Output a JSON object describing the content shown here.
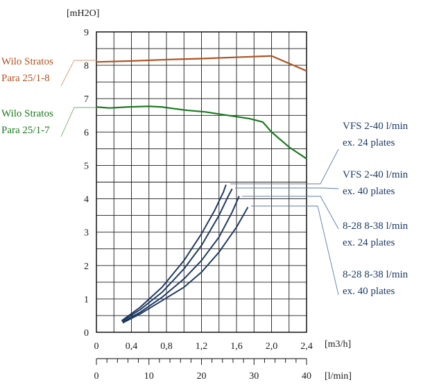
{
  "chart_data": {
    "type": "line",
    "y_axis_label": "[mH2O]",
    "x_axis_label_m3h": "[m3/h]",
    "x_axis_label_lmin": "[l/min]",
    "ylim": [
      0,
      9
    ],
    "xlim_m3h": [
      0,
      2.4
    ],
    "xlim_lmin": [
      0,
      40
    ],
    "y_ticks": [
      "0",
      "1",
      "2",
      "3",
      "4",
      "5",
      "6",
      "7",
      "8",
      "9"
    ],
    "x_ticks_m3h": [
      "0",
      "0,4",
      "0,8",
      "1,2",
      "1,6",
      "2,0",
      "2,4"
    ],
    "x_ticks_lmin": [
      "0",
      "10",
      "20",
      "30",
      "40"
    ],
    "grid": true,
    "pump_curves": [
      {
        "label_line1": "Wilo Stratos",
        "label_line2": "Para 25/1-8",
        "color": "#b0521f",
        "points": [
          [
            0,
            8.1
          ],
          [
            0.4,
            8.13
          ],
          [
            0.8,
            8.17
          ],
          [
            1.2,
            8.2
          ],
          [
            1.6,
            8.24
          ],
          [
            2.0,
            8.28
          ],
          [
            2.4,
            7.83
          ]
        ]
      },
      {
        "label_line1": "Wilo Stratos",
        "label_line2": "Para 25/1-7",
        "color": "#1a7a1f",
        "points": [
          [
            0,
            6.75
          ],
          [
            0.15,
            6.72
          ],
          [
            0.35,
            6.75
          ],
          [
            0.6,
            6.77
          ],
          [
            0.75,
            6.75
          ],
          [
            1.0,
            6.66
          ],
          [
            1.25,
            6.6
          ],
          [
            1.5,
            6.5
          ],
          [
            1.75,
            6.4
          ],
          [
            1.9,
            6.3
          ],
          [
            2.0,
            6.0
          ],
          [
            2.2,
            5.55
          ],
          [
            2.4,
            5.2
          ]
        ]
      }
    ],
    "hx_color": "#1f3a64",
    "hx_curves": [
      {
        "label_line1": "VFS 2-40 l/min",
        "label_line2": "ex. 24 plates",
        "points": [
          [
            0.29,
            0.35
          ],
          [
            0.5,
            0.75
          ],
          [
            0.75,
            1.35
          ],
          [
            1.0,
            2.15
          ],
          [
            1.2,
            2.95
          ],
          [
            1.35,
            3.65
          ],
          [
            1.45,
            4.2
          ],
          [
            1.48,
            4.42
          ]
        ]
      },
      {
        "label_line1": "VFS 2-40 l/min",
        "label_line2": "ex. 40 plates",
        "points": [
          [
            0.29,
            0.33
          ],
          [
            0.5,
            0.68
          ],
          [
            0.75,
            1.2
          ],
          [
            1.0,
            1.9
          ],
          [
            1.2,
            2.6
          ],
          [
            1.4,
            3.5
          ],
          [
            1.5,
            4.05
          ],
          [
            1.55,
            4.3
          ]
        ]
      },
      {
        "label_line1": "8-28 8-38 l/min",
        "label_line2": "ex. 24 plates",
        "points": [
          [
            0.3,
            0.31
          ],
          [
            0.5,
            0.6
          ],
          [
            0.75,
            1.05
          ],
          [
            1.0,
            1.6
          ],
          [
            1.2,
            2.15
          ],
          [
            1.4,
            2.85
          ],
          [
            1.55,
            3.6
          ],
          [
            1.63,
            4.08
          ]
        ]
      },
      {
        "label_line1": "8-28 8-38 l/min",
        "label_line2": "ex. 40 plates",
        "points": [
          [
            0.3,
            0.28
          ],
          [
            0.5,
            0.55
          ],
          [
            0.75,
            0.95
          ],
          [
            1.0,
            1.35
          ],
          [
            1.2,
            1.8
          ],
          [
            1.4,
            2.4
          ],
          [
            1.6,
            3.15
          ],
          [
            1.73,
            3.75
          ]
        ]
      }
    ]
  }
}
